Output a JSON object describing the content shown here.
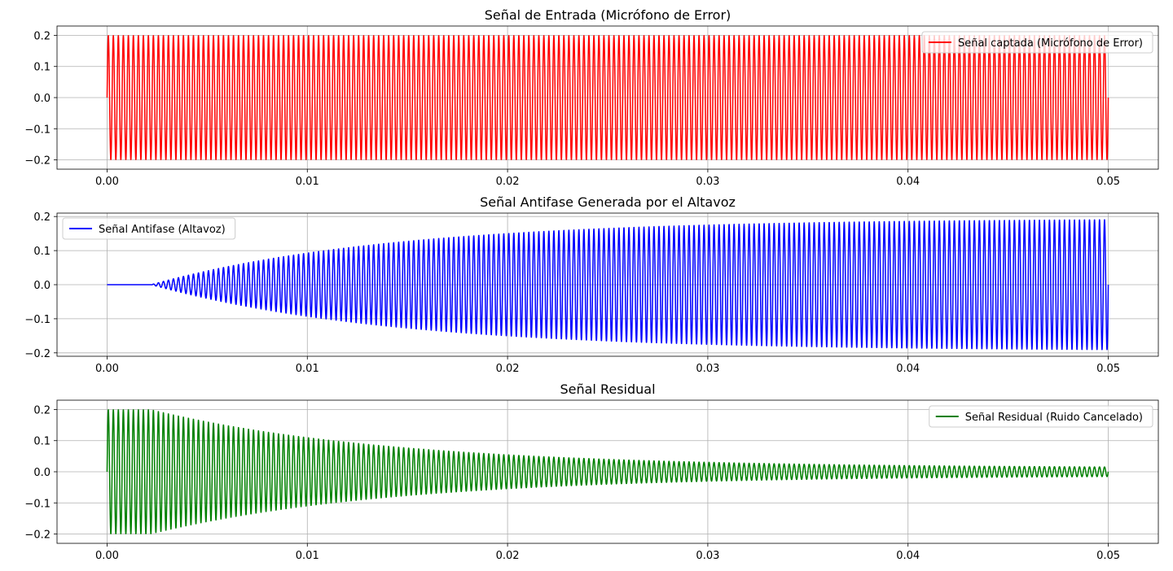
{
  "chart_data": [
    {
      "type": "line",
      "title": "Señal de Entrada (Micrófono de Error)",
      "xlabel": "",
      "ylabel": "",
      "xlim": [
        -0.0025,
        0.0525
      ],
      "ylim": [
        -0.23,
        0.23
      ],
      "xticks": [
        "0.00",
        "0.01",
        "0.02",
        "0.03",
        "0.04",
        "0.05"
      ],
      "yticks": [
        "0.2",
        "0.1",
        "0.0",
        "−0.1",
        "−0.2"
      ],
      "grid": true,
      "legend_position": "upper-right",
      "series": [
        {
          "name": "Señal captada (Micrófono de Error)",
          "color": "#ff0000",
          "signal": {
            "kind": "sine",
            "frequency_hz": 4000,
            "amplitude_start": 0.2,
            "amplitude_end": 0.2,
            "t_start": 0.0,
            "t_end": 0.05,
            "onset": 0.0
          }
        }
      ]
    },
    {
      "type": "line",
      "title": "Señal Antifase Generada por el Altavoz",
      "xlabel": "",
      "ylabel": "",
      "xlim": [
        -0.0025,
        0.0525
      ],
      "ylim": [
        -0.21,
        0.21
      ],
      "xticks": [
        "0.00",
        "0.01",
        "0.02",
        "0.03",
        "0.04",
        "0.05"
      ],
      "yticks": [
        "0.2",
        "0.1",
        "0.0",
        "−0.1",
        "−0.2"
      ],
      "grid": true,
      "legend_position": "upper-left",
      "series": [
        {
          "name": "Señal Antifase (Altavoz)",
          "color": "#0000ff",
          "signal": {
            "kind": "sine",
            "frequency_hz": 4000,
            "amplitude_start": 0.0,
            "amplitude_end": 0.195,
            "t_start": 0.0,
            "t_end": 0.05,
            "onset": 0.0022
          }
        }
      ]
    },
    {
      "type": "line",
      "title": "Señal Residual",
      "xlabel": "",
      "ylabel": "",
      "xlim": [
        -0.0025,
        0.0525
      ],
      "ylim": [
        -0.23,
        0.23
      ],
      "xticks": [
        "0.00",
        "0.01",
        "0.02",
        "0.03",
        "0.04",
        "0.05"
      ],
      "yticks": [
        "0.2",
        "0.1",
        "0.0",
        "−0.1",
        "−0.2"
      ],
      "grid": true,
      "legend_position": "upper-right",
      "series": [
        {
          "name": "Señal Residual (Ruido Cancelado)",
          "color": "#008000",
          "signal": {
            "kind": "sine",
            "frequency_hz": 4000,
            "amplitude_start": 0.2,
            "amplitude_end": 0.012,
            "t_start": 0.0,
            "t_end": 0.05,
            "onset": 0.0022
          }
        }
      ]
    }
  ]
}
